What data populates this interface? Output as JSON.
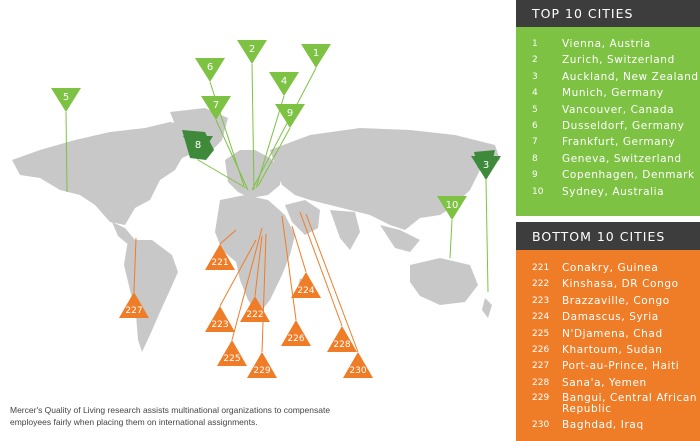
{
  "top": {
    "title": "TOP 10 CITIES",
    "color": "#7dc243",
    "cities": [
      {
        "rank": "1",
        "name": "Vienna, Austria"
      },
      {
        "rank": "2",
        "name": "Zurich, Switzerland"
      },
      {
        "rank": "3",
        "name": "Auckland, New Zealand"
      },
      {
        "rank": "4",
        "name": "Munich, Germany"
      },
      {
        "rank": "5",
        "name": "Vancouver, Canada"
      },
      {
        "rank": "6",
        "name": "Dusseldorf, Germany"
      },
      {
        "rank": "7",
        "name": "Frankfurt, Germany"
      },
      {
        "rank": "8",
        "name": "Geneva, Switzerland"
      },
      {
        "rank": "9",
        "name": "Copenhagen, Denmark"
      },
      {
        "rank": "10",
        "name": "Sydney, Australia"
      }
    ]
  },
  "bottom": {
    "title": "BOTTOM 10 CITIES",
    "color": "#ef7d28",
    "cities": [
      {
        "rank": "221",
        "name": "Conakry, Guinea"
      },
      {
        "rank": "222",
        "name": "Kinshasa, DR Congo"
      },
      {
        "rank": "223",
        "name": "Brazzaville, Congo"
      },
      {
        "rank": "224",
        "name": "Damascus, Syria"
      },
      {
        "rank": "225",
        "name": "N'Djamena, Chad"
      },
      {
        "rank": "226",
        "name": "Khartoum, Sudan"
      },
      {
        "rank": "227",
        "name": "Port-au-Prince, Haiti"
      },
      {
        "rank": "228",
        "name": "Sana'a, Yemen"
      },
      {
        "rank": "229",
        "name": "Bangui, Central African Republic"
      },
      {
        "rank": "230",
        "name": "Baghdad, Iraq"
      }
    ]
  },
  "map": {
    "top_markers": [
      "1",
      "2",
      "3",
      "4",
      "5",
      "6",
      "7",
      "8",
      "9",
      "10"
    ],
    "bottom_markers": [
      "221",
      "222",
      "223",
      "224",
      "225",
      "226",
      "227",
      "228",
      "229",
      "230"
    ],
    "land_color": "#c8c8c8",
    "highlight_color": "#3f8a3a"
  },
  "caption": "Mercer's Quality of Living research assists multinational organizations to compensate employees fairly when placing them on international assignments."
}
